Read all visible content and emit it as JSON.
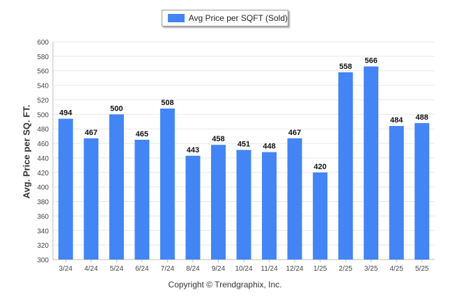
{
  "colors": {
    "bar": "#4385f5",
    "grid": "#e8e8e8",
    "axis": "#bdbdbd"
  },
  "legend": {
    "label": "Avg Price per SQFT (Sold)"
  },
  "copyright": "Copyright © Trendgraphix, Inc.",
  "chart_data": {
    "type": "bar",
    "categories": [
      "3/24",
      "4/24",
      "5/24",
      "6/24",
      "7/24",
      "8/24",
      "9/24",
      "10/24",
      "11/24",
      "12/24",
      "1/25",
      "2/25",
      "3/25",
      "4/25",
      "5/25"
    ],
    "series": [
      {
        "name": "Avg Price per SQFT (Sold)",
        "values": [
          494,
          467,
          500,
          465,
          508,
          443,
          458,
          451,
          448,
          467,
          420,
          558,
          566,
          484,
          488
        ]
      }
    ],
    "ylabel": "Avg. Price per SQ. FT.",
    "xlabel": "",
    "ylim": [
      300,
      600
    ],
    "yticks": [
      300,
      320,
      340,
      360,
      380,
      400,
      420,
      440,
      460,
      480,
      500,
      520,
      540,
      560,
      580,
      600
    ],
    "grid": true,
    "legend_position": "top-center",
    "data_labels": true
  }
}
